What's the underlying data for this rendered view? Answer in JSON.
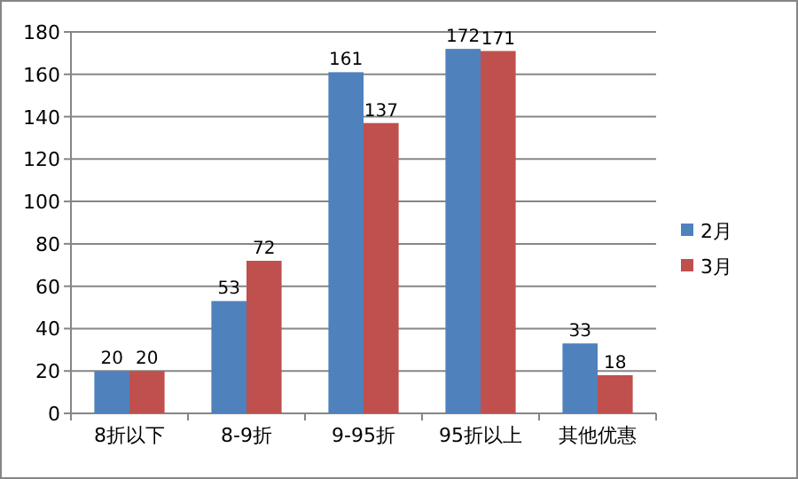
{
  "chart_data": {
    "type": "bar",
    "categories": [
      "8折以下",
      "8-9折",
      "9-95折",
      "95折以上",
      "其他优惠"
    ],
    "series": [
      {
        "name": "2月",
        "color": "#4f81bd",
        "values": [
          20,
          53,
          161,
          172,
          33
        ]
      },
      {
        "name": "3月",
        "color": "#c0504d",
        "values": [
          20,
          72,
          137,
          171,
          18
        ]
      }
    ],
    "ylim": [
      0,
      180
    ],
    "yticks": [
      0,
      20,
      40,
      60,
      80,
      100,
      120,
      140,
      160,
      180
    ],
    "grid": "y",
    "legend": "right",
    "data_labels": true
  }
}
